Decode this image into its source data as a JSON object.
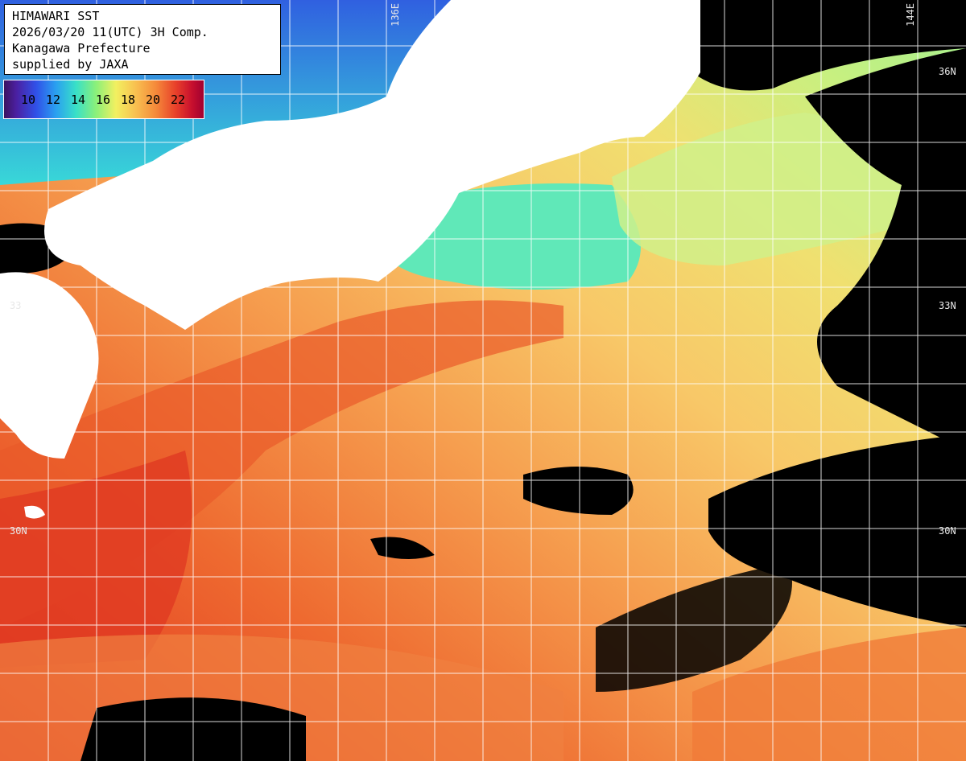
{
  "header": {
    "line1": "HIMAWARI SST",
    "line2": "2026/03/20 11(UTC) 3H Comp.",
    "line3": "Kanagawa Prefecture",
    "line4": "supplied by JAXA"
  },
  "legend": {
    "ticks": [
      "10",
      "12",
      "14",
      "16",
      "18",
      "20",
      "22"
    ]
  },
  "grid_labels": {
    "lon_136": "136E",
    "lon_144": "144E",
    "lat_36_right": "36N",
    "lat_33_left": "33",
    "lat_33_right": "33N",
    "lat_30_left": "30N",
    "lat_30_right": "30N"
  },
  "colors": {
    "land": "#ffffff",
    "cloud": "#000000",
    "gridline": "#ffffff",
    "warm": "#e8502a",
    "mid": "#f8c860",
    "cool": "#68e8b0"
  }
}
